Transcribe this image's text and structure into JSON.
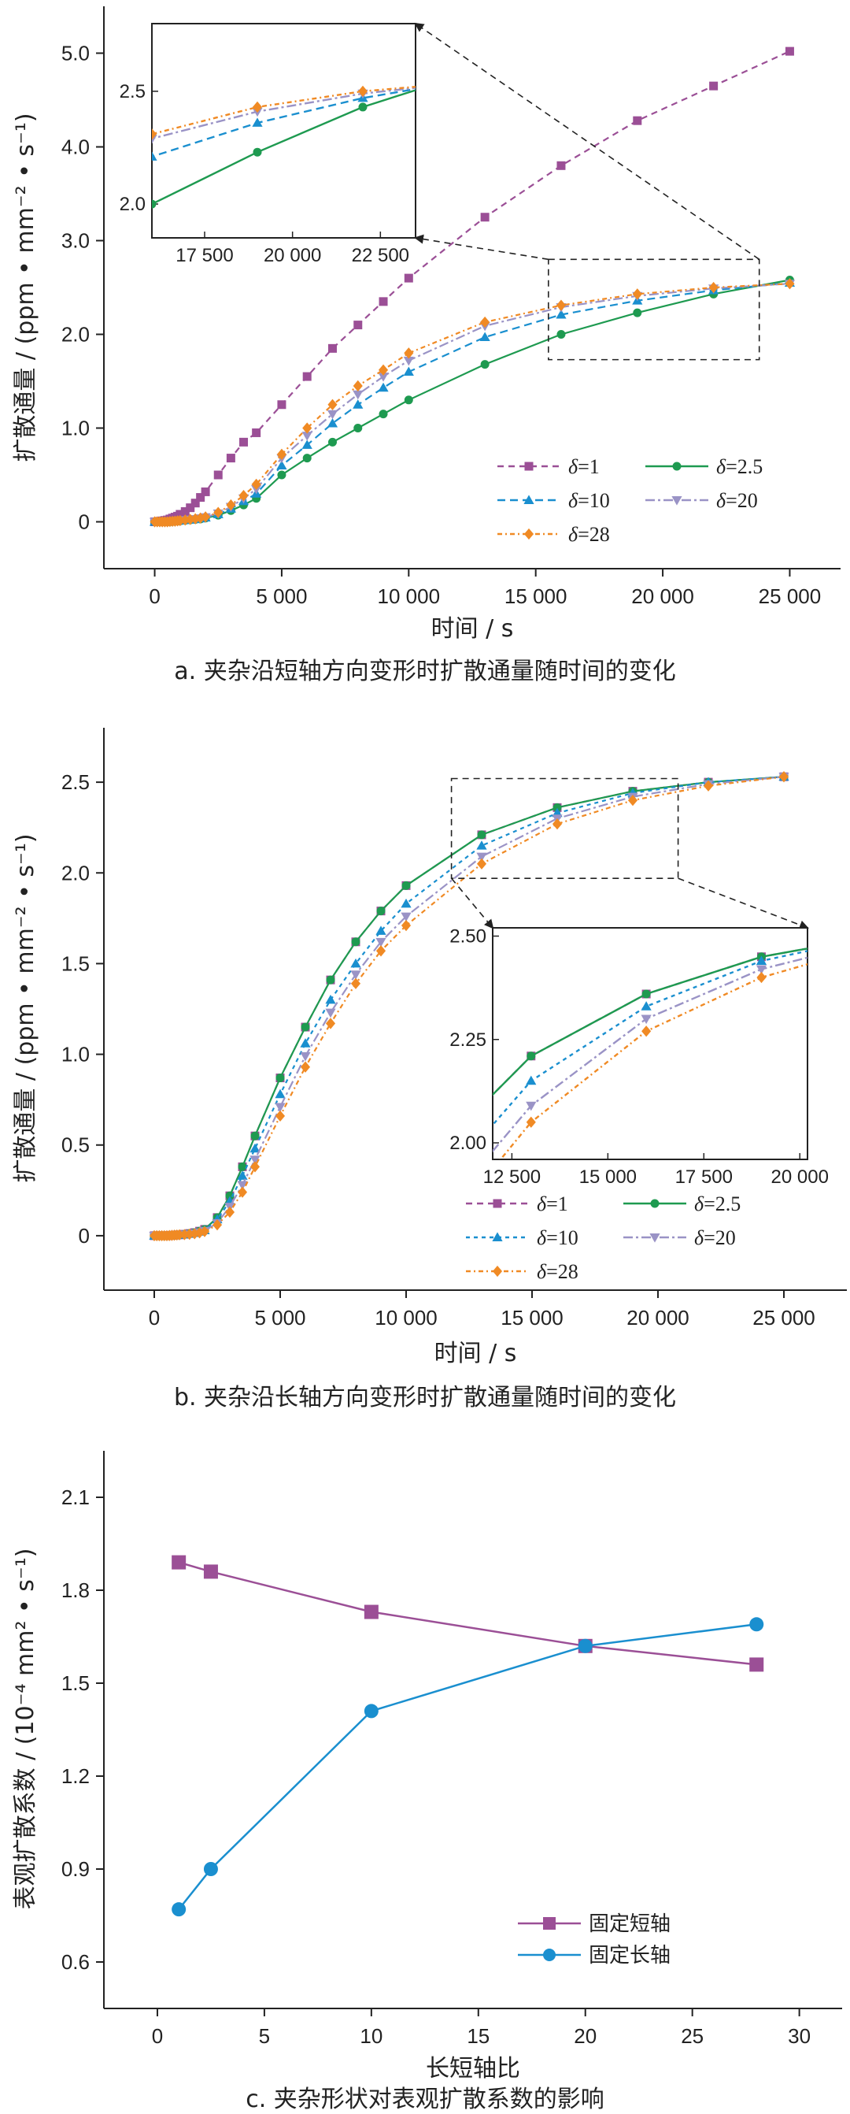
{
  "chart_data": [
    {
      "type": "line",
      "caption": "a. 夹杂沿短轴方向变形时扩散通量随时间的变化",
      "xlabel": "时间 / s",
      "ylabel": "扩散通量 / (ppm • mm⁻² • s⁻¹)",
      "xlim": [
        -2000,
        27000
      ],
      "ylim": [
        -0.5,
        5.5
      ],
      "xticks": [
        0,
        5000,
        10000,
        15000,
        20000,
        25000
      ],
      "xtick_labels": [
        "0",
        "5 000",
        "10 000",
        "15 000",
        "20 000",
        "25 000"
      ],
      "yticks": [
        0,
        1,
        2,
        3,
        4,
        5
      ],
      "ytick_labels": [
        "0",
        "1.0",
        "2.0",
        "3.0",
        "4.0",
        "5.0"
      ],
      "legend_position": "lower-right",
      "zoom_box": {
        "x": [
          15500,
          23800
        ],
        "y": [
          1.73,
          2.8
        ]
      },
      "inset": {
        "xlim": [
          16000,
          23500
        ],
        "ylim": [
          1.85,
          2.8
        ],
        "xticks": [
          17500,
          20000,
          22500
        ],
        "xtick_labels": [
          "17 500",
          "20 000",
          "22 500"
        ],
        "yticks": [
          2.0,
          2.5
        ],
        "ytick_labels": [
          "2.0",
          "2.5"
        ]
      },
      "series": [
        {
          "name": "δ=1",
          "color": "#9b4f96",
          "marker": "square",
          "dash": "8,6",
          "x": [
            0,
            100,
            200,
            300,
            400,
            500,
            600,
            700,
            800,
            900,
            1000,
            1200,
            1400,
            1600,
            1800,
            2000,
            2500,
            3000,
            3500,
            4000,
            5000,
            6000,
            7000,
            8000,
            9000,
            10000,
            13000,
            16000,
            19000,
            22000,
            25000
          ],
          "y": [
            0,
            0,
            0.005,
            0.01,
            0.015,
            0.02,
            0.03,
            0.04,
            0.05,
            0.06,
            0.08,
            0.11,
            0.15,
            0.2,
            0.26,
            0.32,
            0.5,
            0.68,
            0.85,
            0.95,
            1.25,
            1.55,
            1.85,
            2.1,
            2.35,
            2.6,
            3.25,
            3.8,
            4.28,
            4.65,
            5.02
          ]
        },
        {
          "name": "δ=2.5",
          "color": "#1e9a50",
          "marker": "circle",
          "dash": "",
          "x": [
            0,
            100,
            200,
            300,
            400,
            500,
            600,
            700,
            800,
            900,
            1000,
            1200,
            1400,
            1600,
            1800,
            2000,
            2500,
            3000,
            3500,
            4000,
            5000,
            6000,
            7000,
            8000,
            9000,
            10000,
            13000,
            16000,
            19000,
            22000,
            25000
          ],
          "y": [
            0,
            0,
            0,
            0,
            0,
            0,
            0,
            0.003,
            0.005,
            0.007,
            0.01,
            0.015,
            0.02,
            0.025,
            0.03,
            0.04,
            0.07,
            0.12,
            0.18,
            0.25,
            0.5,
            0.68,
            0.85,
            1.0,
            1.15,
            1.3,
            1.68,
            2.0,
            2.23,
            2.43,
            2.58
          ]
        },
        {
          "name": "δ=10",
          "color": "#1a8fcf",
          "marker": "triangle-up",
          "dash": "10,6",
          "x": [
            0,
            100,
            200,
            300,
            400,
            500,
            600,
            700,
            800,
            900,
            1000,
            1200,
            1400,
            1600,
            1800,
            2000,
            2500,
            3000,
            3500,
            4000,
            5000,
            6000,
            7000,
            8000,
            9000,
            10000,
            13000,
            16000,
            19000,
            22000,
            25000
          ],
          "y": [
            0,
            0,
            0,
            0,
            0,
            0,
            0.003,
            0.005,
            0.007,
            0.01,
            0.012,
            0.017,
            0.022,
            0.028,
            0.035,
            0.045,
            0.08,
            0.14,
            0.22,
            0.3,
            0.6,
            0.82,
            1.05,
            1.25,
            1.43,
            1.6,
            1.97,
            2.21,
            2.36,
            2.47,
            2.55
          ]
        },
        {
          "name": "δ=20",
          "color": "#9a93c6",
          "marker": "triangle-down",
          "dash": "12,4,3,4",
          "x": [
            0,
            100,
            200,
            300,
            400,
            500,
            600,
            700,
            800,
            900,
            1000,
            1200,
            1400,
            1600,
            1800,
            2000,
            2500,
            3000,
            3500,
            4000,
            5000,
            6000,
            7000,
            8000,
            9000,
            10000,
            13000,
            16000,
            19000,
            22000,
            25000
          ],
          "y": [
            0,
            0,
            0,
            0,
            0,
            0,
            0.003,
            0.005,
            0.007,
            0.01,
            0.013,
            0.018,
            0.024,
            0.03,
            0.038,
            0.05,
            0.09,
            0.16,
            0.25,
            0.35,
            0.68,
            0.92,
            1.15,
            1.36,
            1.55,
            1.72,
            2.09,
            2.29,
            2.41,
            2.49,
            2.54
          ]
        },
        {
          "name": "δ=28",
          "color": "#f08a24",
          "marker": "diamond",
          "dash": "6,4,2,4",
          "x": [
            0,
            100,
            200,
            300,
            400,
            500,
            600,
            700,
            800,
            900,
            1000,
            1200,
            1400,
            1600,
            1800,
            2000,
            2500,
            3000,
            3500,
            4000,
            5000,
            6000,
            7000,
            8000,
            9000,
            10000,
            13000,
            16000,
            19000,
            22000,
            25000
          ],
          "y": [
            0,
            0,
            0,
            0,
            0,
            0,
            0.003,
            0.005,
            0.007,
            0.01,
            0.013,
            0.019,
            0.025,
            0.032,
            0.04,
            0.052,
            0.1,
            0.18,
            0.28,
            0.4,
            0.72,
            1.0,
            1.25,
            1.45,
            1.62,
            1.8,
            2.13,
            2.31,
            2.43,
            2.5,
            2.54
          ]
        }
      ]
    },
    {
      "type": "line",
      "caption": "b. 夹杂沿长轴方向变形时扩散通量随时间的变化",
      "xlabel": "时间 / s",
      "ylabel": "扩散通量 / (ppm • mm⁻² • s⁻¹)",
      "xlim": [
        -2000,
        27500
      ],
      "ylim": [
        -0.3,
        2.8
      ],
      "xticks": [
        0,
        5000,
        10000,
        15000,
        20000,
        25000
      ],
      "xtick_labels": [
        "0",
        "5 000",
        "10 000",
        "15 000",
        "20 000",
        "25 000"
      ],
      "yticks": [
        0,
        0.5,
        1.0,
        1.5,
        2.0,
        2.5
      ],
      "ytick_labels": [
        "0",
        "0.5",
        "1.0",
        "1.5",
        "2.0",
        "2.5"
      ],
      "legend_position": "lower-right",
      "zoom_box": {
        "x": [
          11800,
          20800
        ],
        "y": [
          1.97,
          2.52
        ]
      },
      "inset": {
        "xlim": [
          12000,
          20200
        ],
        "ylim": [
          1.96,
          2.52
        ],
        "xticks": [
          12500,
          15000,
          17500,
          20000
        ],
        "xtick_labels": [
          "12 500",
          "15 000",
          "17 500",
          "20 000"
        ],
        "yticks": [
          2.0,
          2.25,
          2.5
        ],
        "ytick_labels": [
          "2.00",
          "2.25",
          "2.50"
        ]
      },
      "series": [
        {
          "name": "δ=1",
          "color": "#9b4f96",
          "marker": "square",
          "dash": "8,6",
          "x": [
            0,
            100,
            200,
            300,
            400,
            500,
            600,
            700,
            800,
            900,
            1000,
            1200,
            1400,
            1600,
            1800,
            2000,
            2500,
            3000,
            3500,
            4000,
            5000,
            6000,
            7000,
            8000,
            9000,
            10000,
            13000,
            16000,
            19000,
            22000,
            25000
          ],
          "y": [
            0,
            0,
            0,
            0,
            0,
            0,
            0.001,
            0.002,
            0.003,
            0.004,
            0.005,
            0.008,
            0.012,
            0.017,
            0.025,
            0.035,
            0.1,
            0.22,
            0.38,
            0.55,
            0.87,
            1.15,
            1.41,
            1.62,
            1.79,
            1.93,
            2.21,
            2.36,
            2.45,
            2.5,
            2.53
          ]
        },
        {
          "name": "δ=2.5",
          "color": "#1e9a50",
          "marker": "circle",
          "dash": "",
          "x": [
            0,
            100,
            200,
            300,
            400,
            500,
            600,
            700,
            800,
            900,
            1000,
            1200,
            1400,
            1600,
            1800,
            2000,
            2500,
            3000,
            3500,
            4000,
            5000,
            6000,
            7000,
            8000,
            9000,
            10000,
            13000,
            16000,
            19000,
            22000,
            25000
          ],
          "y": [
            0,
            0,
            0,
            0,
            0,
            0,
            0.001,
            0.002,
            0.003,
            0.004,
            0.005,
            0.008,
            0.012,
            0.017,
            0.025,
            0.035,
            0.1,
            0.22,
            0.38,
            0.55,
            0.87,
            1.15,
            1.41,
            1.62,
            1.79,
            1.93,
            2.21,
            2.36,
            2.45,
            2.5,
            2.53
          ]
        },
        {
          "name": "δ=10",
          "color": "#1a8fcf",
          "marker": "triangle-up",
          "dash": "5,5",
          "x": [
            0,
            100,
            200,
            300,
            400,
            500,
            600,
            700,
            800,
            900,
            1000,
            1200,
            1400,
            1600,
            1800,
            2000,
            2500,
            3000,
            3500,
            4000,
            5000,
            6000,
            7000,
            8000,
            9000,
            10000,
            13000,
            16000,
            19000,
            22000,
            25000
          ],
          "y": [
            0,
            0,
            0,
            0,
            0,
            0,
            0.001,
            0.002,
            0.003,
            0.004,
            0.005,
            0.007,
            0.01,
            0.015,
            0.022,
            0.03,
            0.09,
            0.19,
            0.33,
            0.48,
            0.78,
            1.06,
            1.3,
            1.5,
            1.68,
            1.83,
            2.15,
            2.33,
            2.44,
            2.5,
            2.53
          ]
        },
        {
          "name": "δ=20",
          "color": "#9a93c6",
          "marker": "triangle-down",
          "dash": "12,4,3,4",
          "x": [
            0,
            100,
            200,
            300,
            400,
            500,
            600,
            700,
            800,
            900,
            1000,
            1200,
            1400,
            1600,
            1800,
            2000,
            2500,
            3000,
            3500,
            4000,
            5000,
            6000,
            7000,
            8000,
            9000,
            10000,
            13000,
            16000,
            19000,
            22000,
            25000
          ],
          "y": [
            0,
            0,
            0,
            0,
            0,
            0,
            0.001,
            0.002,
            0.003,
            0.004,
            0.005,
            0.007,
            0.009,
            0.013,
            0.019,
            0.027,
            0.07,
            0.16,
            0.28,
            0.42,
            0.71,
            0.99,
            1.23,
            1.44,
            1.62,
            1.76,
            2.09,
            2.3,
            2.42,
            2.49,
            2.53
          ]
        },
        {
          "name": "δ=28",
          "color": "#f08a24",
          "marker": "diamond",
          "dash": "6,4,2,4",
          "x": [
            0,
            100,
            200,
            300,
            400,
            500,
            600,
            700,
            800,
            900,
            1000,
            1200,
            1400,
            1600,
            1800,
            2000,
            2500,
            3000,
            3500,
            4000,
            5000,
            6000,
            7000,
            8000,
            9000,
            10000,
            13000,
            16000,
            19000,
            22000,
            25000
          ],
          "y": [
            0,
            0,
            0,
            0,
            0,
            0,
            0.001,
            0.002,
            0.003,
            0.004,
            0.005,
            0.006,
            0.008,
            0.011,
            0.016,
            0.023,
            0.06,
            0.13,
            0.24,
            0.38,
            0.66,
            0.93,
            1.17,
            1.39,
            1.57,
            1.71,
            2.05,
            2.27,
            2.4,
            2.48,
            2.53
          ]
        }
      ]
    },
    {
      "type": "line",
      "caption": "c. 夹杂形状对表观扩散系数的影响",
      "xlabel": "长短轴比",
      "ylabel": "表观扩散系数 / (10⁻⁴ mm² • s⁻¹)",
      "xlim": [
        -2.5,
        32
      ],
      "ylim": [
        0.45,
        2.25
      ],
      "xticks": [
        0,
        5,
        10,
        15,
        20,
        25,
        30
      ],
      "xtick_labels": [
        "0",
        "5",
        "10",
        "15",
        "20",
        "25",
        "30"
      ],
      "yticks": [
        0.6,
        0.9,
        1.2,
        1.5,
        1.8,
        2.1
      ],
      "ytick_labels": [
        "0.6",
        "0.9",
        "1.2",
        "1.5",
        "1.8",
        "2.1"
      ],
      "legend_position": "lower-right",
      "series": [
        {
          "name": "固定短轴",
          "color": "#9b4f96",
          "marker": "square",
          "dash": "",
          "x": [
            1,
            2.5,
            10,
            20,
            28
          ],
          "y": [
            1.89,
            1.86,
            1.73,
            1.62,
            1.56
          ]
        },
        {
          "name": "固定长轴",
          "color": "#1a8fcf",
          "marker": "circle",
          "dash": "",
          "x": [
            1,
            2.5,
            10,
            20,
            28
          ],
          "y": [
            0.77,
            0.9,
            1.41,
            1.62,
            1.69
          ]
        }
      ]
    }
  ]
}
